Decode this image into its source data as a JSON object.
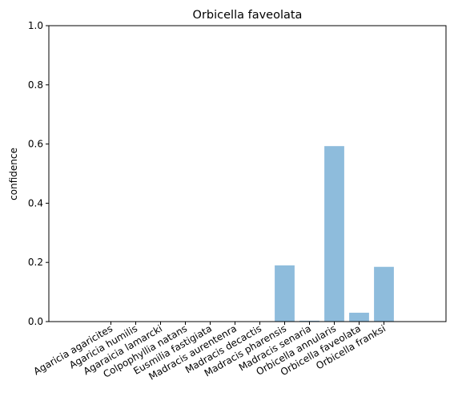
{
  "chart_data": {
    "type": "bar",
    "title": "Orbicella faveolata",
    "xlabel": "",
    "ylabel": "confidence",
    "ylim": [
      0,
      1
    ],
    "yticks": [
      0.0,
      0.2,
      0.4,
      0.6,
      0.8,
      1.0
    ],
    "ytick_labels": [
      "0.0",
      "0.2",
      "0.4",
      "0.6",
      "0.8",
      "1.0"
    ],
    "categories": [
      "Agaricia agaricites",
      "Agaricia humilis",
      "Agaraicia lamarcki",
      "Colpophyllia natans",
      "Eusmilia fastigiata",
      "Madracis aurentenra",
      "Madracis decactis",
      "Madracis pharensis",
      "Madracis senaria",
      "Orbicella annularis",
      "Orbicella faveolata",
      "Orbicella franksi"
    ],
    "values": [
      0.0,
      0.0,
      0.0,
      0.0,
      0.0,
      0.0,
      0.0,
      0.19,
      0.003,
      0.593,
      0.03,
      0.185
    ],
    "bar_color": "#8ebcdc",
    "grid": false,
    "legend": "none"
  }
}
